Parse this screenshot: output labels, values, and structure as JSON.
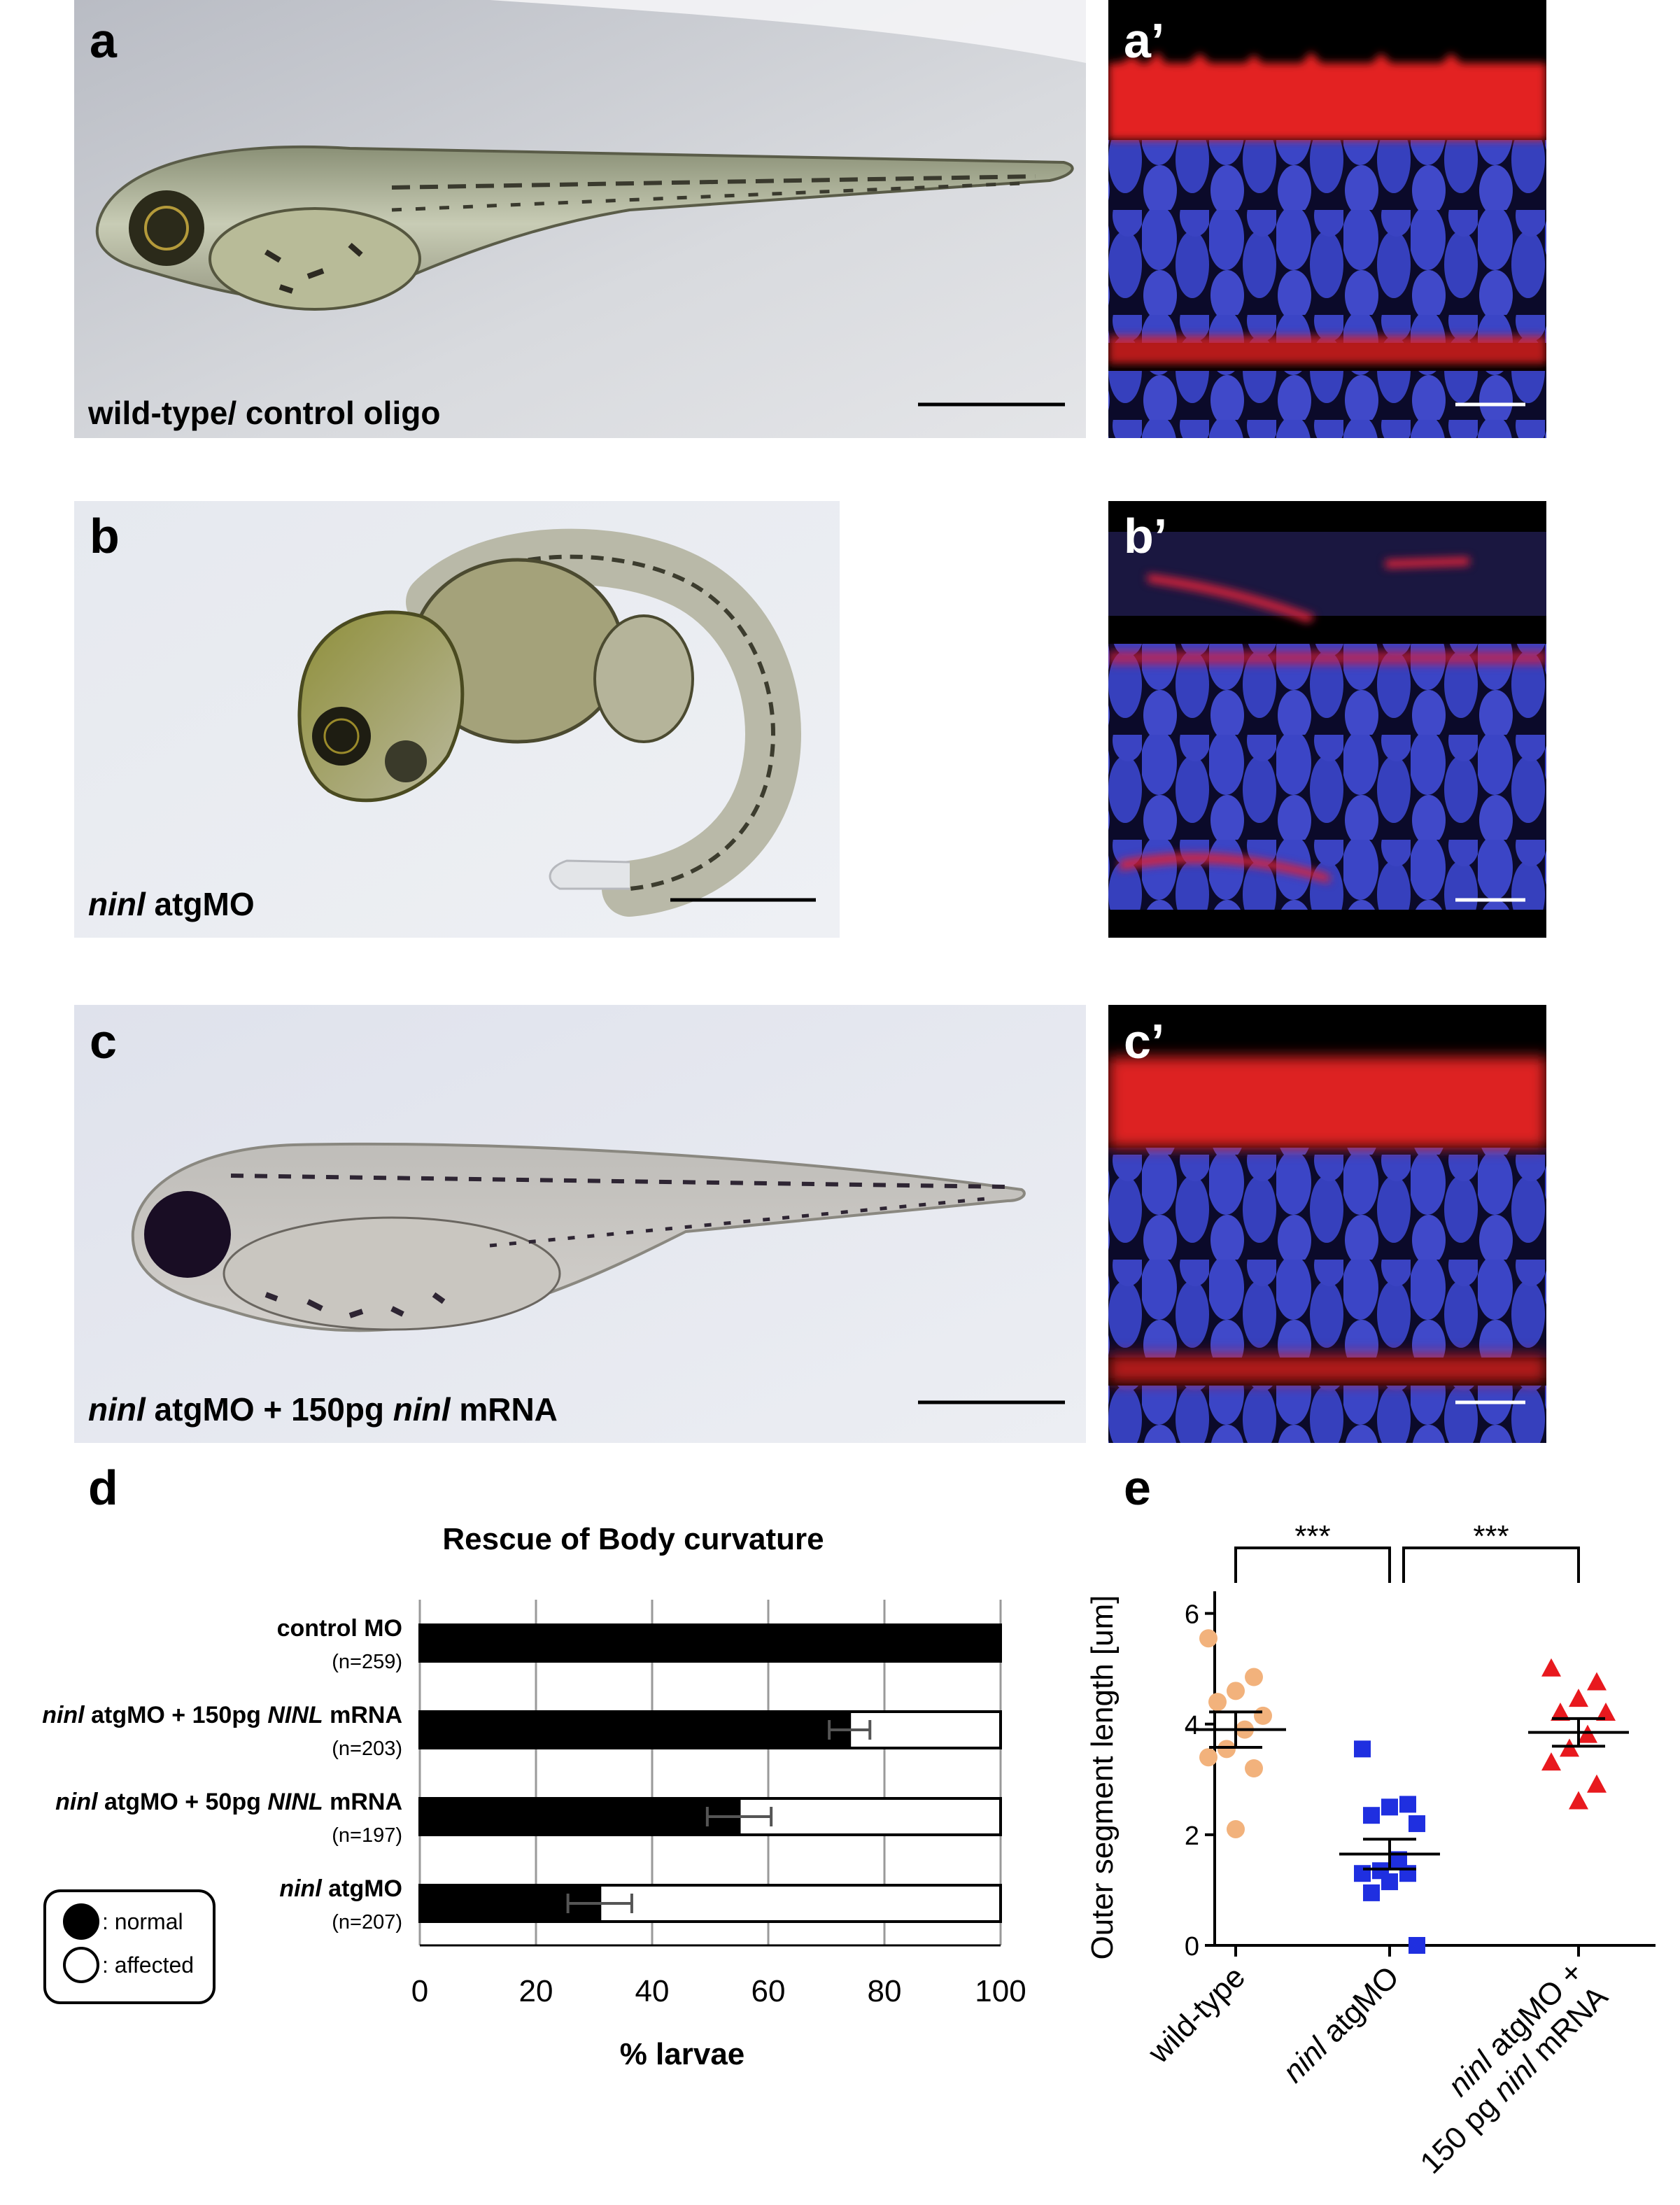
{
  "panels": [
    {
      "label": "a",
      "caption": [
        {
          "text": "wild-type/ control oligo"
        }
      ]
    },
    {
      "label": "a’"
    },
    {
      "label": "b",
      "caption": [
        {
          "text": "ninl",
          "italic": true
        },
        {
          "text": " atgMO"
        }
      ]
    },
    {
      "label": "b’"
    },
    {
      "label": "c",
      "caption": [
        {
          "text": "ninl",
          "italic": true
        },
        {
          "text": " atgMO + 150pg "
        },
        {
          "text": "ninl",
          "italic": true
        },
        {
          "text": " mRNA"
        }
      ]
    },
    {
      "label": "c’"
    }
  ],
  "chart_data": [
    {
      "type": "bar",
      "orientation": "horizontal",
      "stacked": true,
      "label": "d",
      "title": "Rescue of Body curvature",
      "categories": [
        [
          {
            "text": "control MO"
          }
        ],
        [
          {
            "text": "ninl",
            "italic": true
          },
          {
            "text": " atgMO + 150pg "
          },
          {
            "text": "NINL",
            "italic": true
          },
          {
            "text": " mRNA"
          }
        ],
        [
          {
            "text": "ninl",
            "italic": true
          },
          {
            "text": " atgMO + 50pg "
          },
          {
            "text": "NINL",
            "italic": true
          },
          {
            "text": " mRNA"
          }
        ],
        [
          {
            "text": "ninl",
            "italic": true
          },
          {
            "text": " atgMO"
          }
        ]
      ],
      "sample_sizes": [
        "(n=259)",
        "(n=203)",
        "(n=197)",
        "(n=207)"
      ],
      "series": [
        {
          "name": ": normal",
          "color": "#000000",
          "values": [
            100,
            74,
            55,
            31
          ],
          "errors": [
            null,
            3.5,
            5.5,
            5.5
          ]
        },
        {
          "name": ": affected",
          "color": "#ffffff",
          "values": [
            0,
            26,
            45,
            69
          ]
        }
      ],
      "xlabel": "% larvae",
      "xlim": [
        0,
        100
      ],
      "xticks": [
        0,
        20,
        40,
        60,
        80,
        100
      ],
      "grid": true
    },
    {
      "type": "strip",
      "label": "e",
      "ylabel": "Outer segment length [um]",
      "categories": [
        [
          [
            {
              "text": "wild-type"
            }
          ]
        ],
        [
          [
            {
              "text": "ninl",
              "italic": true
            },
            {
              "text": " atgMO"
            }
          ]
        ],
        [
          [
            {
              "text": "ninl",
              "italic": true
            },
            {
              "text": " atgMO +"
            }
          ],
          [
            {
              "text": "150 pg "
            },
            {
              "text": "ninl",
              "italic": true
            },
            {
              "text": " mRNA"
            }
          ]
        ]
      ],
      "ylim": [
        0,
        6.4
      ],
      "yticks": [
        0,
        2,
        4,
        6
      ],
      "series": [
        {
          "color": "#f2b27c",
          "marker": "circle",
          "values": [
            5.55,
            4.85,
            4.6,
            4.4,
            4.15,
            3.9,
            3.55,
            3.4,
            3.2,
            2.1
          ],
          "mean": 3.9,
          "sem": 0.32
        },
        {
          "color": "#1f2fe0",
          "marker": "square",
          "values": [
            3.55,
            2.55,
            2.5,
            2.35,
            2.2,
            1.55,
            1.35,
            1.3,
            1.3,
            1.15,
            0.95,
            0.0
          ],
          "mean": 1.65,
          "sem": 0.27
        },
        {
          "color": "#e8191e",
          "marker": "triangle",
          "values": [
            5.0,
            4.75,
            4.45,
            4.2,
            4.2,
            3.8,
            3.55,
            3.3,
            2.9,
            2.6
          ],
          "mean": 3.85,
          "sem": 0.25
        }
      ],
      "annotations": [
        {
          "text": "***",
          "from": 0,
          "to": 1
        },
        {
          "text": "***",
          "from": 1,
          "to": 2
        }
      ]
    }
  ]
}
